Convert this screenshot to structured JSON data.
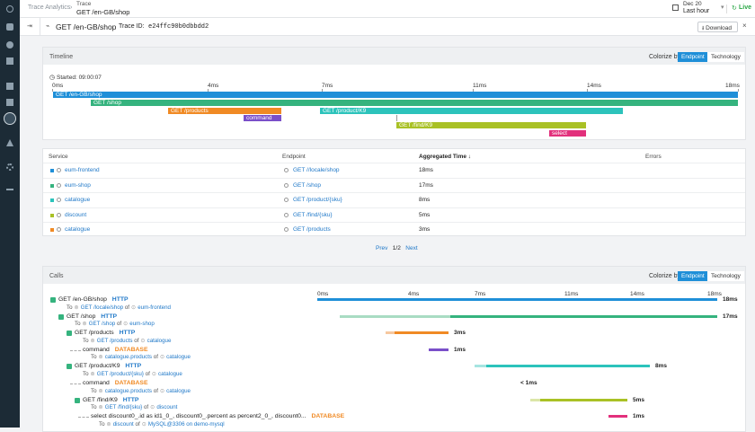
{
  "header": {
    "breadcrumb": "Trace Analytics",
    "section": "Trace",
    "title": "GET /en-GB/shop",
    "date": "Dec 20",
    "range": "Last hour",
    "live": "Live"
  },
  "panel": {
    "title": "GET /en-GB/shop",
    "trace_id_label": "Trace ID:",
    "trace_id": "e24ffc90b0dbbdd2",
    "download": "Download"
  },
  "timeline": {
    "label": "Timeline",
    "colorize_label": "Colorize by",
    "options": [
      "Endpoint",
      "Technology"
    ],
    "started": "Started: 09:00:07",
    "ticks": [
      "0ms",
      "4ms",
      "7ms",
      "11ms",
      "14ms",
      "18ms"
    ],
    "bars": [
      "GET /en-GB/shop",
      "GET /shop",
      "GET /products",
      "command",
      "GET /product/K9",
      "GET /find/K9",
      "select disco..."
    ]
  },
  "table": {
    "columns": [
      "Service",
      "Endpoint",
      "Aggregated Time ↓",
      "Errors"
    ],
    "rows": [
      {
        "service": "eum-frontend",
        "endpoint": "GET //locale/shop",
        "time": "18ms"
      },
      {
        "service": "eum-shop",
        "endpoint": "GET /shop",
        "time": "17ms"
      },
      {
        "service": "catalogue",
        "endpoint": "GET /product/{sku}",
        "time": "8ms"
      },
      {
        "service": "discount",
        "endpoint": "GET /find/{sku}",
        "time": "5ms"
      },
      {
        "service": "catalogue",
        "endpoint": "GET /products",
        "time": "3ms"
      }
    ]
  },
  "pagination": {
    "prev": "Prev",
    "page": "1/2",
    "next": "Next"
  },
  "calls": {
    "label": "Calls",
    "colorize_label": "Colorize by",
    "options": [
      "Endpoint",
      "Technology"
    ],
    "ticks": [
      "0ms",
      "4ms",
      "7ms",
      "11ms",
      "14ms",
      "18ms"
    ],
    "to": "To",
    "of": "of",
    "rows": [
      {
        "name": "GET /en-GB/shop",
        "tech": "HTTP",
        "target": "GET /locale/shop",
        "owner": "eum-frontend",
        "duration": "18ms"
      },
      {
        "name": "GET /shop",
        "tech": "HTTP",
        "target": "GET /shop",
        "owner": "eum-shop",
        "duration": "17ms"
      },
      {
        "name": "GET /products",
        "tech": "HTTP",
        "target": "GET /products",
        "owner": "catalogue",
        "duration": "3ms"
      },
      {
        "name": "command",
        "tech": "DATABASE",
        "target": "catalogue.products",
        "owner": "catalogue",
        "duration": "1ms"
      },
      {
        "name": "GET /product/K9",
        "tech": "HTTP",
        "target": "GET /product/{sku}",
        "owner": "catalogue",
        "duration": "8ms"
      },
      {
        "name": "command",
        "tech": "DATABASE",
        "target": "catalogue.products",
        "owner": "catalogue",
        "duration": "< 1ms"
      },
      {
        "name": "GET /find/K9",
        "tech": "HTTP",
        "target": "GET /find/{sku}",
        "owner": "discount",
        "duration": "5ms"
      },
      {
        "name": "select discount0_.id as id1_0_, discount0_.percent as percent2_0_, discount0...",
        "tech": "DATABASE",
        "target": "discount",
        "owner": "MySQL@3306 on demo-mysql",
        "duration": "1ms"
      }
    ]
  }
}
